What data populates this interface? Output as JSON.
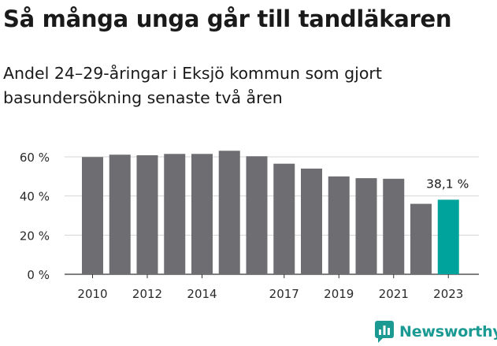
{
  "title": "Så många unga går till tandläkaren",
  "subtitle": "Andel 24–29-åringar i Eksjö kommun som gjort basundersökning senaste två åren",
  "brand": {
    "name": "Newsworthy",
    "icon": "newsworthy-logo-icon",
    "color": "#1a9a93"
  },
  "chart_data": {
    "type": "bar",
    "categories": [
      "2010",
      "2011",
      "2012",
      "2013",
      "2014",
      "2015",
      "2016",
      "2017",
      "2018",
      "2019",
      "2020",
      "2021",
      "2022",
      "2023"
    ],
    "x_tick_labels": [
      "2010",
      "",
      "2012",
      "",
      "2014",
      "",
      "",
      "2017",
      "",
      "2019",
      "",
      "2021",
      "",
      "2023"
    ],
    "values": [
      59.9,
      61.1,
      60.8,
      61.5,
      61.5,
      63.1,
      60.3,
      56.5,
      54.0,
      50.0,
      49.1,
      48.8,
      36.0,
      38.1
    ],
    "ylim": [
      0,
      60
    ],
    "y_ticks": [
      {
        "value": 0,
        "label": "0 %"
      },
      {
        "value": 20,
        "label": "20 %"
      },
      {
        "value": 40,
        "label": "40 %"
      },
      {
        "value": 60,
        "label": "60 %"
      }
    ],
    "highlight_index": 13,
    "highlight_label": "38,1 %",
    "bar_color": "#6e6d72",
    "highlight_color": "#00a39b",
    "grid": true,
    "legend": "none"
  }
}
